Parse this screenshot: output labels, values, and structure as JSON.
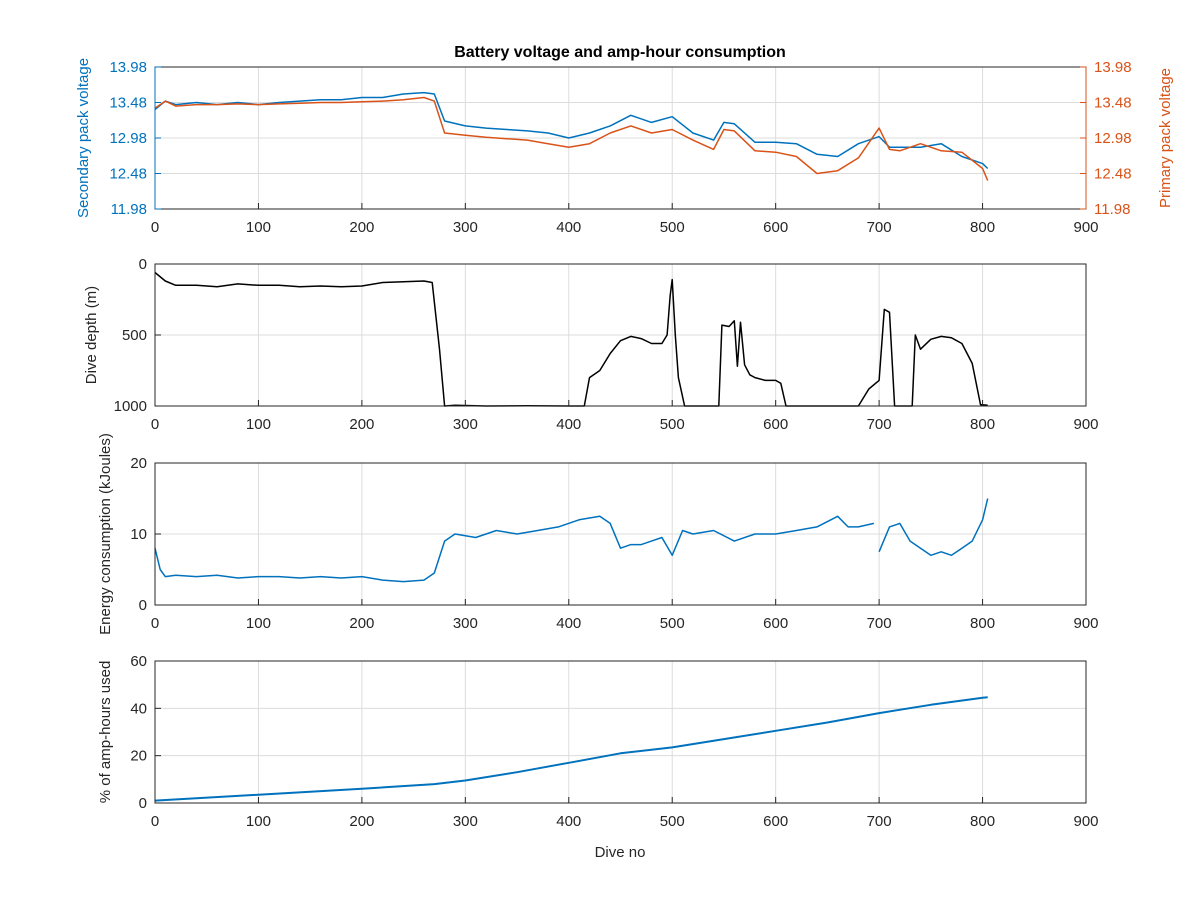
{
  "chart_data": [
    {
      "type": "line",
      "title": "Battery voltage and amp-hour consumption",
      "xlabel": "",
      "ylabel": "Secondary pack voltage",
      "ylabel_right": "Primary pack voltage",
      "xlim": [
        0,
        900
      ],
      "ylim": [
        11.98,
        13.98
      ],
      "ylim_right": [
        11.98,
        13.98
      ],
      "xticks": [
        0,
        100,
        200,
        300,
        400,
        500,
        600,
        700,
        800,
        900
      ],
      "yticks": [
        11.98,
        12.48,
        12.98,
        13.48,
        13.98
      ],
      "yticks_right": [
        11.98,
        12.48,
        12.98,
        13.48,
        13.98
      ],
      "grid": true,
      "colors": {
        "left_axis": "#0072BD",
        "right_axis": "#D95319"
      },
      "series": [
        {
          "axis": "left",
          "color": "#0072BD",
          "x": [
            0,
            10,
            20,
            40,
            60,
            80,
            100,
            120,
            140,
            160,
            180,
            200,
            220,
            240,
            260,
            270,
            280,
            300,
            320,
            340,
            360,
            380,
            400,
            420,
            440,
            460,
            480,
            500,
            520,
            540,
            550,
            560,
            580,
            600,
            620,
            640,
            660,
            680,
            700,
            710,
            720,
            740,
            760,
            780,
            800,
            805
          ],
          "y": [
            13.38,
            13.5,
            13.45,
            13.48,
            13.45,
            13.48,
            13.45,
            13.48,
            13.5,
            13.52,
            13.52,
            13.55,
            13.55,
            13.6,
            13.62,
            13.6,
            13.22,
            13.15,
            13.12,
            13.1,
            13.08,
            13.05,
            12.98,
            13.05,
            13.15,
            13.3,
            13.2,
            13.28,
            13.05,
            12.95,
            13.2,
            13.18,
            12.92,
            12.92,
            12.9,
            12.75,
            12.72,
            12.9,
            13.0,
            12.85,
            12.85,
            12.85,
            12.9,
            12.72,
            12.62,
            12.55
          ]
        },
        {
          "axis": "right",
          "color": "#D95319",
          "x": [
            0,
            10,
            20,
            40,
            60,
            80,
            100,
            120,
            140,
            160,
            180,
            200,
            220,
            240,
            260,
            270,
            280,
            300,
            320,
            340,
            360,
            380,
            400,
            420,
            440,
            460,
            480,
            500,
            520,
            540,
            550,
            560,
            580,
            600,
            620,
            640,
            660,
            680,
            700,
            710,
            720,
            740,
            760,
            780,
            800,
            805
          ],
          "y": [
            13.4,
            13.5,
            13.43,
            13.45,
            13.45,
            13.46,
            13.45,
            13.46,
            13.47,
            13.48,
            13.48,
            13.49,
            13.5,
            13.52,
            13.55,
            13.5,
            13.05,
            13.02,
            12.99,
            12.97,
            12.95,
            12.9,
            12.85,
            12.9,
            13.05,
            13.15,
            13.05,
            13.1,
            12.95,
            12.82,
            13.1,
            13.08,
            12.8,
            12.78,
            12.72,
            12.48,
            12.52,
            12.7,
            13.12,
            12.82,
            12.8,
            12.9,
            12.8,
            12.78,
            12.55,
            12.38
          ]
        }
      ]
    },
    {
      "type": "line",
      "title": "",
      "xlabel": "",
      "ylabel": "Dive depth (m)",
      "xlim": [
        0,
        900
      ],
      "ylim": [
        0,
        1000
      ],
      "y_reversed": true,
      "xticks": [
        0,
        100,
        200,
        300,
        400,
        500,
        600,
        700,
        800,
        900
      ],
      "yticks": [
        0,
        500,
        1000
      ],
      "grid": true,
      "series": [
        {
          "color": "#000000",
          "x": [
            0,
            10,
            20,
            40,
            60,
            80,
            100,
            120,
            140,
            160,
            180,
            200,
            220,
            240,
            260,
            268,
            275,
            280,
            290,
            320,
            360,
            400,
            415,
            420,
            430,
            440,
            450,
            460,
            470,
            480,
            490,
            495,
            498,
            500,
            503,
            506,
            512,
            520,
            545,
            548,
            555,
            560,
            563,
            566,
            570,
            575,
            580,
            590,
            600,
            605,
            610,
            640,
            680,
            690,
            700,
            705,
            710,
            715,
            725,
            732,
            735,
            740,
            750,
            760,
            770,
            780,
            790,
            798,
            805
          ],
          "y": [
            60,
            120,
            150,
            150,
            160,
            140,
            150,
            150,
            160,
            155,
            160,
            155,
            130,
            125,
            120,
            130,
            600,
            1000,
            995,
            1000,
            998,
            1000,
            1000,
            800,
            750,
            630,
            540,
            510,
            525,
            560,
            560,
            500,
            220,
            110,
            500,
            800,
            1000,
            1000,
            1000,
            430,
            440,
            400,
            720,
            410,
            710,
            780,
            800,
            820,
            820,
            840,
            1000,
            1000,
            1000,
            880,
            820,
            320,
            340,
            1000,
            1000,
            1000,
            500,
            600,
            530,
            510,
            520,
            560,
            700,
            990,
            995
          ]
        }
      ]
    },
    {
      "type": "line",
      "title": "",
      "xlabel": "",
      "ylabel": "Energy consumption (kJoules)",
      "xlim": [
        0,
        900
      ],
      "ylim": [
        0,
        20
      ],
      "xticks": [
        0,
        100,
        200,
        300,
        400,
        500,
        600,
        700,
        800,
        900
      ],
      "yticks": [
        0,
        10,
        20
      ],
      "grid": true,
      "series": [
        {
          "color": "#0072BD",
          "x": [
            0,
            5,
            10,
            20,
            40,
            60,
            80,
            100,
            120,
            140,
            160,
            180,
            200,
            220,
            240,
            260,
            270,
            280,
            290,
            310,
            330,
            350,
            370,
            390,
            410,
            430,
            440,
            450,
            460,
            470,
            480,
            490,
            500,
            510,
            520,
            540,
            560,
            580,
            600,
            620,
            640,
            660,
            670,
            680,
            695,
            null,
            700,
            710,
            720,
            730,
            740,
            750,
            760,
            770,
            780,
            790,
            800,
            805
          ],
          "y": [
            8,
            5,
            4,
            4.2,
            4,
            4.2,
            3.8,
            4,
            4,
            3.8,
            4,
            3.8,
            4,
            3.5,
            3.3,
            3.5,
            4.5,
            9,
            10,
            9.5,
            10.5,
            10,
            10.5,
            11,
            12,
            12.5,
            11.5,
            8,
            8.5,
            8.5,
            9,
            9.5,
            7,
            10.5,
            10,
            10.5,
            9,
            10,
            10,
            10.5,
            11,
            12.5,
            11,
            11,
            11.5,
            null,
            7.5,
            11,
            11.5,
            9,
            8,
            7,
            7.5,
            7,
            8,
            9,
            12,
            15
          ]
        }
      ]
    },
    {
      "type": "line",
      "title": "",
      "xlabel": "Dive no",
      "ylabel": "% of amp-hours used",
      "xlim": [
        0,
        900
      ],
      "ylim": [
        0,
        60
      ],
      "xticks": [
        0,
        100,
        200,
        300,
        400,
        500,
        600,
        700,
        800,
        900
      ],
      "yticks": [
        0,
        20,
        40,
        60
      ],
      "grid": true,
      "series": [
        {
          "color": "#0072BD",
          "x": [
            0,
            100,
            200,
            270,
            300,
            350,
            400,
            450,
            500,
            550,
            600,
            650,
            700,
            750,
            800,
            805
          ],
          "y": [
            1,
            3.5,
            6,
            8,
            9.5,
            13,
            17,
            21,
            23.5,
            27,
            30.5,
            34,
            38,
            41.5,
            44.5,
            44.7
          ]
        }
      ]
    }
  ]
}
